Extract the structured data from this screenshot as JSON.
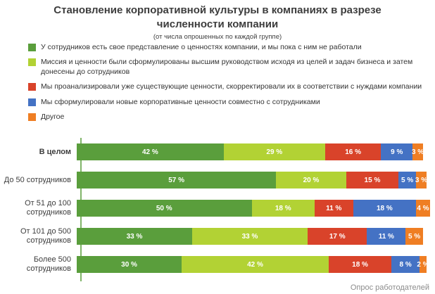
{
  "title": {
    "line1": "Становление корпоративной культуры в компаниях в разрезе",
    "line2": "численности компании",
    "subtitle": "(от числа опрошенных по каждой группе)"
  },
  "chart_data": {
    "type": "bar",
    "orientation": "horizontal",
    "stacked": true,
    "grid": false,
    "legend_position": "top-left",
    "xlim": [
      0,
      100
    ],
    "value_suffix": " %",
    "categories": [
      "В целом",
      "До 50 сотрудников",
      "От 51 до 100 сотрудников",
      "От 101 до 500 сотрудников",
      "Более 500 сотрудников"
    ],
    "series": [
      {
        "name": "У сотрудников есть свое представление о ценностях компании, и мы пока с ним не работали",
        "color": "#5a9e3c",
        "values": [
          42,
          57,
          50,
          33,
          30
        ]
      },
      {
        "name": "Миссия и ценности были сформулированы высшим руководством исходя из целей и задач бизнеса и затем донесены до сотрудников",
        "color": "#b2d234",
        "values": [
          29,
          20,
          18,
          33,
          42
        ]
      },
      {
        "name": "Мы проанализировали уже существующие ценности, скорректировали их в соответствии с нуждами компании",
        "color": "#d9432a",
        "values": [
          16,
          15,
          11,
          17,
          18
        ]
      },
      {
        "name": "Мы сформулировали новые корпоративные ценности совместно с сотрудниками",
        "color": "#4472c4",
        "values": [
          9,
          5,
          18,
          11,
          8
        ]
      },
      {
        "name": "Другое",
        "color": "#ef7e23",
        "values": [
          3,
          3,
          4,
          5,
          2
        ]
      }
    ]
  },
  "footer": {
    "source_label": "Опрос работодателей"
  }
}
